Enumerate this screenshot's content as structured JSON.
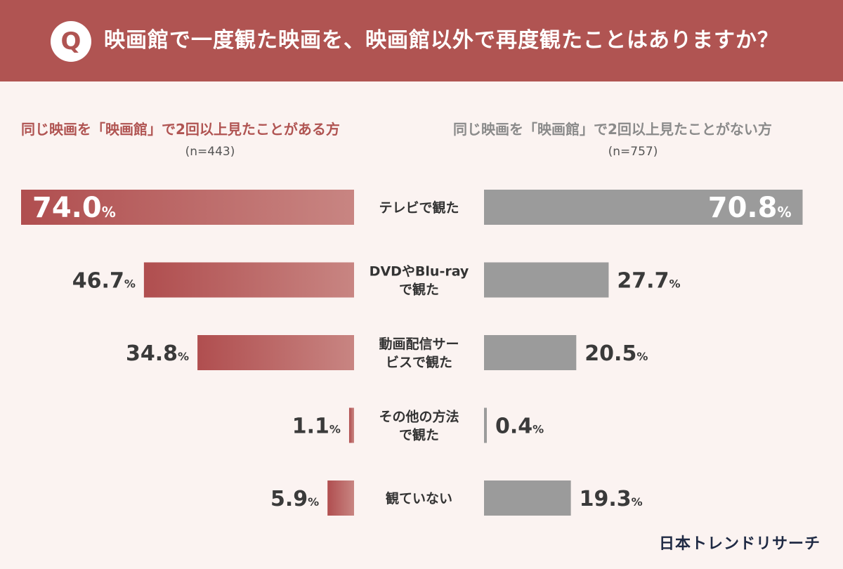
{
  "header": {
    "badge": "Q",
    "question": "映画館で一度観た映画を、映画館以外で再度観たことはありますか？"
  },
  "colors": {
    "header_bg": "#b05452",
    "left_bar_dark": "#b04e4f",
    "left_bar_light": "#c88582",
    "right_bar": "#9b9b9b",
    "background": "#fbf3f1"
  },
  "groups": {
    "left": {
      "title": "同じ映画を「映画館」で2回以上見たことがある方",
      "n": "(n=443)"
    },
    "right": {
      "title": "同じ映画を「映画館」で2回以上見たことがない方",
      "n": "(n=757)"
    }
  },
  "chart_data": {
    "type": "bar",
    "orientation": "horizontal-butterfly",
    "unit": "%",
    "xlim": [
      0,
      74
    ],
    "categories": [
      [
        "テレビで観た"
      ],
      [
        "DVDやBlu-ray",
        "で観た"
      ],
      [
        "動画配信サー",
        "ビスで観た"
      ],
      [
        "その他の方法",
        "で観た"
      ],
      [
        "観ていない"
      ]
    ],
    "series": [
      {
        "name": "同じ映画を「映画館」で2回以上見たことがある方",
        "values": [
          74.0,
          46.7,
          34.8,
          1.1,
          5.9
        ]
      },
      {
        "name": "同じ映画を「映画館」で2回以上見たことがない方",
        "values": [
          70.8,
          27.7,
          20.5,
          0.4,
          19.3
        ]
      }
    ]
  },
  "source": "日本トレンドリサーチ"
}
